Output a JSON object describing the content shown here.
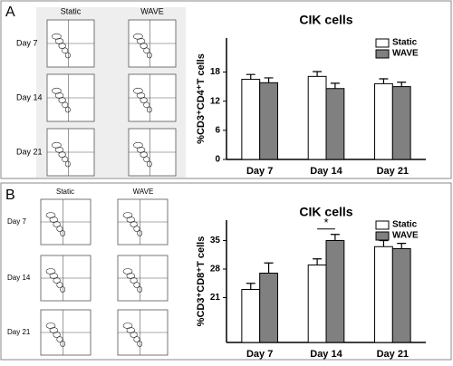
{
  "panels": [
    {
      "letter": "A",
      "columns": [
        "Static",
        "WAVE"
      ],
      "rows": [
        "Day 7",
        "Day 14",
        "Day 21"
      ]
    },
    {
      "letter": "B",
      "columns": [
        "Static",
        "WAVE"
      ],
      "rows": [
        "Day 7",
        "Day 14",
        "Day 21"
      ]
    }
  ],
  "chart_data": [
    {
      "type": "bar",
      "title": "CIK cells",
      "y_label": "%CD3⁺CD4⁺T cells",
      "categories": [
        "Day 7",
        "Day 14",
        "Day 21"
      ],
      "series": [
        {
          "name": "Static",
          "color": "#ffffff",
          "values": [
            16.5,
            17.1,
            15.6
          ],
          "errors": [
            1.0,
            1.0,
            1.0
          ]
        },
        {
          "name": "WAVE",
          "color": "#808080",
          "values": [
            15.8,
            14.6,
            15.0
          ],
          "errors": [
            1.0,
            1.1,
            0.9
          ]
        }
      ],
      "ylim": [
        0,
        25
      ],
      "yticks": [
        0,
        6,
        12,
        18
      ],
      "legend": "upper-right"
    },
    {
      "type": "bar",
      "title": "CIK cells",
      "y_label": "%CD3⁺CD8⁺T cells",
      "categories": [
        "Day 7",
        "Day 14",
        "Day 21"
      ],
      "series": [
        {
          "name": "Static",
          "color": "#ffffff",
          "values": [
            23,
            29,
            33.5
          ],
          "errors": [
            1.5,
            1.5,
            1.5
          ]
        },
        {
          "name": "WAVE",
          "color": "#808080",
          "values": [
            27,
            35,
            33
          ],
          "errors": [
            2.5,
            1.5,
            1.3
          ]
        }
      ],
      "ylim": [
        10,
        40
      ],
      "yticks": [
        21,
        28,
        35
      ],
      "legend": "upper-right",
      "annotations": [
        "*"
      ]
    }
  ]
}
